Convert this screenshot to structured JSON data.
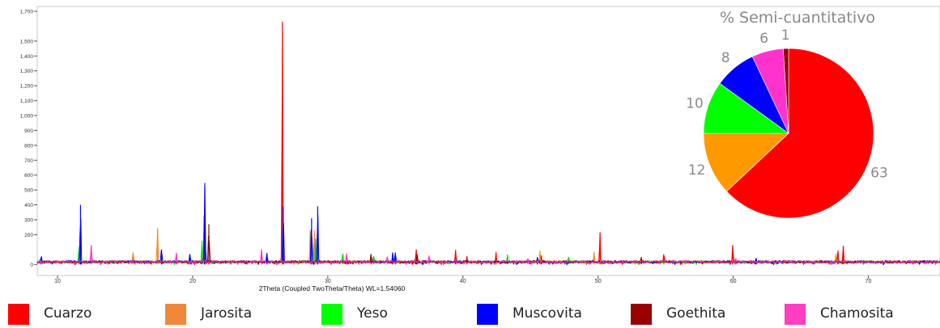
{
  "chart_data": [
    {
      "type": "line",
      "title": "",
      "xlabel": "2Theta (Coupled TwoTheta/Theta) WL=1.54060",
      "ylabel": "",
      "xlim": [
        8.5,
        75.3
      ],
      "ylim": [
        -20,
        1700
      ],
      "x_ticks": [
        "10",
        "20",
        "30",
        "40",
        "50",
        "60",
        "70"
      ],
      "y_ticks": [
        "0",
        "200",
        "300",
        "400",
        "500",
        "600",
        "700",
        "800",
        "900",
        "1,000",
        "1,100",
        "1,200",
        "1,300",
        "1,400",
        "1,500",
        "1,700"
      ],
      "grid": false,
      "series": [
        {
          "name": "Cuarzo",
          "color": "#ff0000",
          "peaks": [
            [
              20.86,
              320
            ],
            [
              26.64,
              1620
            ],
            [
              36.54,
              90
            ],
            [
              39.46,
              85
            ],
            [
              40.3,
              40
            ],
            [
              42.45,
              60
            ],
            [
              45.8,
              45
            ],
            [
              50.14,
              200
            ],
            [
              54.87,
              50
            ],
            [
              59.96,
              120
            ],
            [
              67.74,
              70
            ],
            [
              68.14,
              110
            ]
          ]
        },
        {
          "name": "Jarosita",
          "color": "#f28a1a",
          "peaks": [
            [
              15.6,
              70
            ],
            [
              17.4,
              230
            ],
            [
              28.7,
              210
            ],
            [
              29.0,
              220
            ],
            [
              45.7,
              70
            ],
            [
              49.7,
              65
            ],
            [
              67.6,
              60
            ]
          ]
        },
        {
          "name": "Yeso",
          "color": "#00e000",
          "peaks": [
            [
              11.6,
              110
            ],
            [
              20.7,
              150
            ],
            [
              29.1,
              160
            ],
            [
              31.1,
              60
            ],
            [
              33.4,
              40
            ],
            [
              43.3,
              40
            ],
            [
              47.8,
              35
            ]
          ]
        },
        {
          "name": "Muscovita",
          "color": "#0000ff",
          "peaks": [
            [
              8.8,
              40
            ],
            [
              11.7,
              390
            ],
            [
              17.7,
              90
            ],
            [
              19.8,
              60
            ],
            [
              20.9,
              520
            ],
            [
              25.5,
              60
            ],
            [
              26.7,
              380
            ],
            [
              28.8,
              300
            ],
            [
              29.25,
              380
            ],
            [
              34.8,
              70
            ],
            [
              35.0,
              70
            ],
            [
              45.5,
              40
            ],
            [
              61.7,
              30
            ]
          ]
        },
        {
          "name": "Goethita",
          "color": "#8b0000",
          "peaks": [
            [
              21.2,
              260
            ],
            [
              33.2,
              60
            ],
            [
              36.6,
              50
            ],
            [
              53.2,
              40
            ]
          ]
        },
        {
          "name": "Chamosita",
          "color": "#ff33b8",
          "peaks": [
            [
              12.5,
              120
            ],
            [
              18.8,
              60
            ],
            [
              25.1,
              80
            ],
            [
              31.4,
              50
            ],
            [
              34.4,
              40
            ],
            [
              37.5,
              50
            ],
            [
              44.8,
              30
            ],
            [
              60.2,
              30
            ]
          ]
        }
      ]
    },
    {
      "type": "pie",
      "title": "% Semi-cuantitativo",
      "labels": [
        "Cuarzo",
        "Jarosita",
        "Yeso",
        "Muscovita",
        "Chamosita",
        "Goethita"
      ],
      "values": [
        63,
        12,
        10,
        8,
        6,
        1
      ],
      "value_labels": [
        "63",
        "12",
        "10",
        "8",
        "6",
        "1"
      ],
      "colors": [
        "#ff0000",
        "#ff9900",
        "#00ff00",
        "#0000ff",
        "#ff33cc",
        "#990000"
      ]
    }
  ],
  "legend": [
    {
      "label": "Cuarzo",
      "color": "#ff0000"
    },
    {
      "label": "Jarosita",
      "color": "#f0883a"
    },
    {
      "label": "Yeso",
      "color": "#00ff00"
    },
    {
      "label": "Muscovita",
      "color": "#0000ff"
    },
    {
      "label": "Goethita",
      "color": "#990000"
    },
    {
      "label": "Chamosita",
      "color": "#ff3fc0"
    }
  ]
}
